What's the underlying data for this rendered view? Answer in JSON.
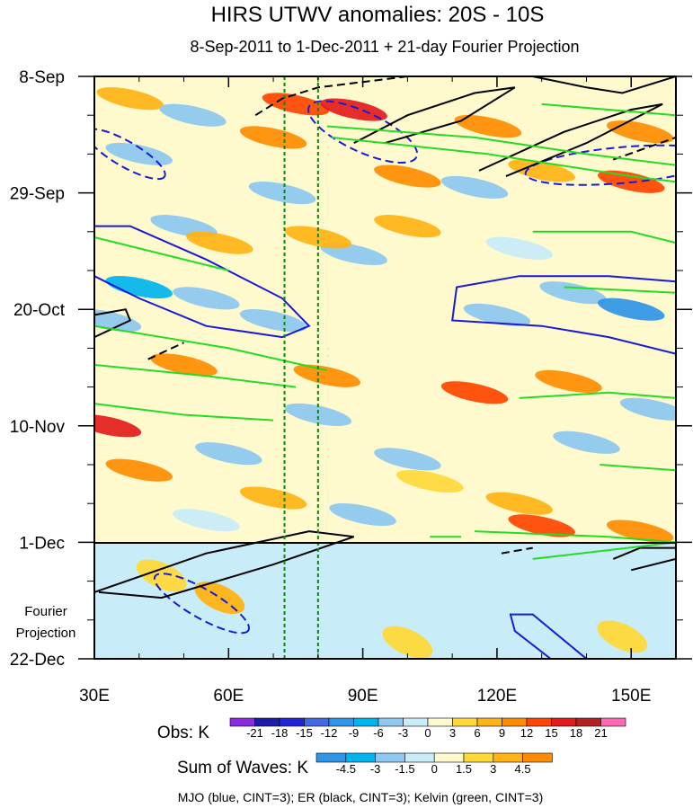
{
  "chart_data": {
    "type": "heatmap",
    "title": "HIRS UTWV anomalies: 20S - 10S",
    "subtitle": "8-Sep-2011 to 1-Dec-2011 + 21-day Fourier Projection",
    "x_axis": {
      "range": [
        30,
        160
      ],
      "ticks": [
        {
          "v": 30,
          "t": "30E"
        },
        {
          "v": 60,
          "t": "60E"
        },
        {
          "v": 90,
          "t": "90E"
        },
        {
          "v": 120,
          "t": "120E"
        },
        {
          "v": 150,
          "t": "150E"
        }
      ]
    },
    "y_axis": {
      "unit": "days since 8-Sep-2011",
      "range": [
        0,
        105
      ],
      "ticks": [
        {
          "v": 0,
          "t": "8-Sep"
        },
        {
          "v": 21,
          "t": "29-Sep"
        },
        {
          "v": 42,
          "t": "20-Oct"
        },
        {
          "v": 63,
          "t": "10-Nov"
        },
        {
          "v": 84,
          "t": "1-Dec"
        },
        {
          "v": 105,
          "t": "22-Dec"
        }
      ]
    },
    "projection_label": [
      "Fourier",
      "Projection"
    ],
    "projection_start_day": 84,
    "reference_longitudes": [
      72.5,
      80
    ],
    "obs_colorbar": {
      "label": "Obs: K",
      "levels": [
        "-21",
        "-18",
        "-15",
        "-12",
        "-9",
        "-6",
        "-3",
        "0",
        "3",
        "6",
        "9",
        "12",
        "15",
        "18",
        "21"
      ],
      "colors": [
        "#8a2be2",
        "#1c1ca8",
        "#2525d8",
        "#4169e1",
        "#2f95e8",
        "#00b4ee",
        "#8cc8f0",
        "#c8ecf8",
        "#fffacd",
        "#ffd93a",
        "#ffb314",
        "#ff8c00",
        "#ff4500",
        "#e31b1b",
        "#b22222",
        "#ff69b4"
      ]
    },
    "waves_colorbar": {
      "label": "Sum of Waves: K",
      "levels": [
        "-4.5",
        "-3",
        "-1.5",
        "0",
        "1.5",
        "3",
        "4.5"
      ],
      "colors": [
        "#2f95e8",
        "#00b4ee",
        "#8cc8f0",
        "#c8ecf8",
        "#fffacd",
        "#ffd93a",
        "#ffb314",
        "#ff8c00"
      ]
    },
    "legend_text": "MJO (blue, CINT=3); ER (black, CINT=3); Kelvin (green, CINT=3)",
    "contours": {
      "mjo": {
        "color": "#1a1ad6",
        "cint": 3
      },
      "er": {
        "color": "#000000",
        "cint": 3
      },
      "kelvin": {
        "color": "#22dd22",
        "cint": 3
      }
    },
    "anomaly_blobs_obs": [
      {
        "lon": 38,
        "day": 4,
        "value": 6
      },
      {
        "lon": 75,
        "day": 5,
        "value": 12
      },
      {
        "lon": 88,
        "day": 6,
        "value": 16
      },
      {
        "lon": 70,
        "day": 11,
        "value": 9
      },
      {
        "lon": 118,
        "day": 9,
        "value": 9
      },
      {
        "lon": 152,
        "day": 10,
        "value": 9
      },
      {
        "lon": 100,
        "day": 18,
        "value": 9
      },
      {
        "lon": 150,
        "day": 19,
        "value": 12
      },
      {
        "lon": 130,
        "day": 17,
        "value": 6
      },
      {
        "lon": 52,
        "day": 7,
        "value": -6
      },
      {
        "lon": 40,
        "day": 14,
        "value": -6
      },
      {
        "lon": 72,
        "day": 21,
        "value": -6
      },
      {
        "lon": 115,
        "day": 20,
        "value": -6
      },
      {
        "lon": 50,
        "day": 27,
        "value": -6
      },
      {
        "lon": 40,
        "day": 38,
        "value": -9
      },
      {
        "lon": 55,
        "day": 40,
        "value": -6
      },
      {
        "lon": 70,
        "day": 44,
        "value": -6
      },
      {
        "lon": 88,
        "day": 32,
        "value": -6
      },
      {
        "lon": 137,
        "day": 39,
        "value": -6
      },
      {
        "lon": 150,
        "day": 42,
        "value": -12
      },
      {
        "lon": 120,
        "day": 43,
        "value": -6
      },
      {
        "lon": 125,
        "day": 31,
        "value": -3
      },
      {
        "lon": 33,
        "day": 44,
        "value": -6
      },
      {
        "lon": 100,
        "day": 27,
        "value": 6
      },
      {
        "lon": 80,
        "day": 29,
        "value": 6
      },
      {
        "lon": 58,
        "day": 30,
        "value": 6
      },
      {
        "lon": 115,
        "day": 57,
        "value": 12
      },
      {
        "lon": 82,
        "day": 54,
        "value": 9
      },
      {
        "lon": 50,
        "day": 52,
        "value": 9
      },
      {
        "lon": 136,
        "day": 55,
        "value": 9
      },
      {
        "lon": 33,
        "day": 63,
        "value": 15
      },
      {
        "lon": 155,
        "day": 60,
        "value": -6
      },
      {
        "lon": 60,
        "day": 68,
        "value": -6
      },
      {
        "lon": 100,
        "day": 69,
        "value": -6
      },
      {
        "lon": 140,
        "day": 66,
        "value": -6
      },
      {
        "lon": 80,
        "day": 61,
        "value": -6
      },
      {
        "lon": 40,
        "day": 71,
        "value": 9
      },
      {
        "lon": 70,
        "day": 76,
        "value": 6
      },
      {
        "lon": 125,
        "day": 77,
        "value": 6
      },
      {
        "lon": 90,
        "day": 79,
        "value": -6
      },
      {
        "lon": 130,
        "day": 81,
        "value": 12
      },
      {
        "lon": 152,
        "day": 82,
        "value": 9
      },
      {
        "lon": 55,
        "day": 80,
        "value": -3
      },
      {
        "lon": 105,
        "day": 73,
        "value": 3
      }
    ],
    "anomaly_blobs_projection": [
      {
        "lon": 58,
        "day": 94,
        "value": 3
      },
      {
        "lon": 45,
        "day": 90,
        "value": 1.5
      },
      {
        "lon": 68,
        "day": 88,
        "value": -1.5
      },
      {
        "lon": 85,
        "day": 92,
        "value": -1.5
      },
      {
        "lon": 118,
        "day": 94,
        "value": -1.5
      },
      {
        "lon": 130,
        "day": 99,
        "value": -1.5
      },
      {
        "lon": 35,
        "day": 99,
        "value": -1.5
      },
      {
        "lon": 148,
        "day": 101,
        "value": 1.5
      },
      {
        "lon": 100,
        "day": 102,
        "value": 1.5
      }
    ]
  }
}
